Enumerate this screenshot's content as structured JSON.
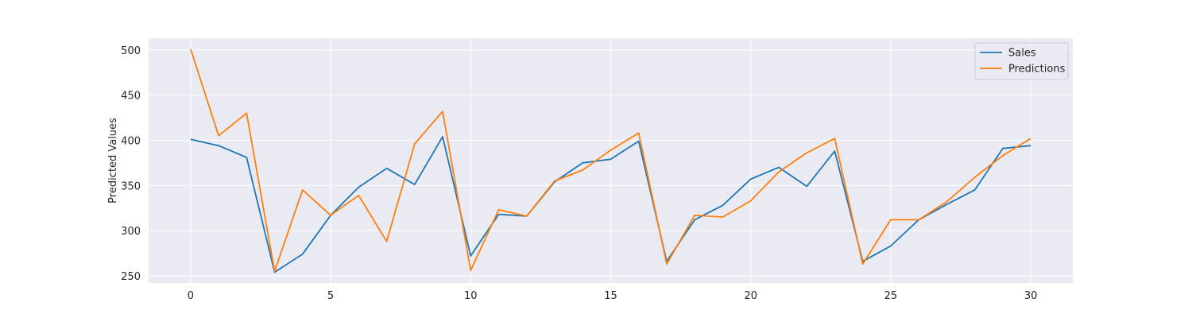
{
  "chart_data": {
    "type": "line",
    "xlabel": "",
    "ylabel": "Predicted Values",
    "xlim": [
      -1.5,
      31.5
    ],
    "ylim": [
      242,
      513
    ],
    "xticks": [
      0,
      5,
      10,
      15,
      20,
      25,
      30
    ],
    "yticks": [
      250,
      300,
      350,
      400,
      450,
      500
    ],
    "grid": true,
    "legend_position": "top-right",
    "x": [
      0,
      1,
      2,
      3,
      4,
      5,
      6,
      7,
      8,
      9,
      10,
      11,
      12,
      13,
      14,
      15,
      16,
      17,
      18,
      19,
      20,
      21,
      22,
      23,
      24,
      25,
      26,
      27,
      28,
      29,
      30
    ],
    "series": [
      {
        "name": "Sales",
        "color": "#1f77b4",
        "values": [
          401,
          394,
          381,
          254,
          274,
          317,
          348,
          369,
          351,
          404,
          272,
          318,
          316,
          354,
          375,
          379,
          399,
          266,
          312,
          328,
          357,
          370,
          349,
          388,
          266,
          283,
          312,
          329,
          345,
          391,
          394
        ]
      },
      {
        "name": "Predictions",
        "color": "#ff7f0e",
        "values": [
          501,
          405,
          430,
          255,
          345,
          317,
          339,
          288,
          396,
          432,
          256,
          323,
          316,
          355,
          367,
          389,
          408,
          263,
          317,
          315,
          333,
          365,
          386,
          402,
          263,
          312,
          312,
          332,
          359,
          383,
          402
        ]
      }
    ],
    "colors": {
      "plot_background": "#eaeaf2",
      "grid": "#ffffff",
      "text": "#262626"
    }
  }
}
